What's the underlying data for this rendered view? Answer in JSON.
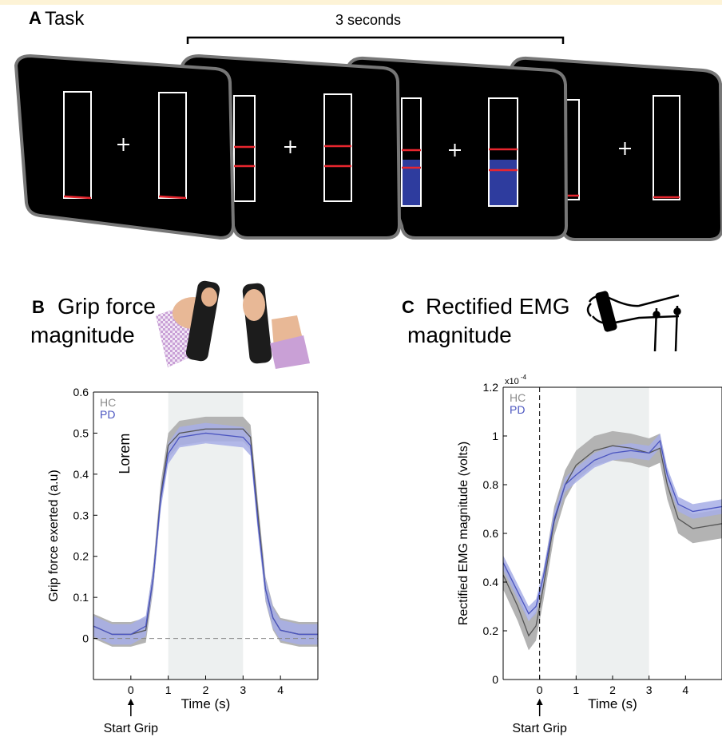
{
  "panel_a": {
    "letter": "A",
    "title": "Task",
    "duration_label": "3 seconds"
  },
  "panel_b": {
    "letter": "B",
    "title_line1": "Grip force",
    "title_line2": "magnitude"
  },
  "panel_c": {
    "letter": "C",
    "title_line1": "Rectified EMG",
    "title_line2": "magnitude"
  },
  "colors": {
    "hc": "#8c8c8c",
    "pd": "#4b55c0",
    "pd_band": "#a7aee6",
    "hc_band": "#b3b3b3",
    "shade": "#edf0f0",
    "screen_fill": "#000000",
    "blue_fill": "#2e3c9e",
    "red_line": "#e8262e"
  },
  "chart_data": [
    {
      "type": "line",
      "ylabel": "Grip force exerted (a.u)",
      "xlabel": "Time (s)",
      "xlim": [
        -1,
        5
      ],
      "ylim": [
        -0.1,
        0.6
      ],
      "x_ticks": [
        "0",
        "1",
        "2",
        "3",
        "4"
      ],
      "y_ticks": [
        "0",
        "0.1",
        "0.2",
        "0.3",
        "0.4",
        "0.5",
        "0.6"
      ],
      "shaded_interval": [
        1,
        3
      ],
      "legend": [
        "HC",
        "PD"
      ],
      "legend_position": "top-left",
      "annotation": "Lorem",
      "arrow_label": "Start Grip",
      "series": [
        {
          "name": "HC",
          "x": [
            -1,
            -0.5,
            0,
            0.4,
            0.6,
            0.8,
            1,
            1.3,
            2,
            3,
            3.2,
            3.4,
            3.6,
            3.8,
            4,
            4.5,
            5
          ],
          "y": [
            0.03,
            0.01,
            0.01,
            0.02,
            0.15,
            0.35,
            0.47,
            0.5,
            0.51,
            0.51,
            0.49,
            0.3,
            0.12,
            0.05,
            0.02,
            0.01,
            0.01
          ],
          "band": 0.03
        },
        {
          "name": "PD",
          "x": [
            -1,
            -0.5,
            0,
            0.4,
            0.6,
            0.8,
            1,
            1.3,
            2,
            3,
            3.2,
            3.4,
            3.6,
            3.8,
            4,
            4.5,
            5
          ],
          "y": [
            0.03,
            0.01,
            0.01,
            0.03,
            0.15,
            0.34,
            0.45,
            0.49,
            0.5,
            0.49,
            0.47,
            0.28,
            0.12,
            0.05,
            0.02,
            0.01,
            0.01
          ],
          "band": 0.025
        }
      ]
    },
    {
      "type": "line",
      "ylabel": "Rectified EMG magnitude (volts)",
      "xlabel": "Time (s)",
      "xlim": [
        -1,
        5
      ],
      "ylim": [
        0,
        1.2
      ],
      "y_scale_label": "x10",
      "y_scale_exp": "-4",
      "x_ticks": [
        "0",
        "1",
        "2",
        "3",
        "4"
      ],
      "y_ticks": [
        "0",
        "0.2",
        "0.4",
        "0.6",
        "0.8",
        "1",
        "1.2"
      ],
      "shaded_interval": [
        1,
        3
      ],
      "legend": [
        "HC",
        "PD"
      ],
      "legend_position": "top-left",
      "arrow_label": "Start Grip",
      "series": [
        {
          "name": "HC",
          "x": [
            -1,
            -0.6,
            -0.3,
            -0.1,
            0.1,
            0.4,
            0.7,
            1,
            1.5,
            2,
            2.5,
            3,
            3.3,
            3.5,
            3.8,
            4.2,
            5
          ],
          "y": [
            0.43,
            0.3,
            0.18,
            0.22,
            0.38,
            0.65,
            0.8,
            0.88,
            0.94,
            0.96,
            0.95,
            0.93,
            0.95,
            0.8,
            0.66,
            0.62,
            0.64
          ],
          "band": 0.06
        },
        {
          "name": "PD",
          "x": [
            -1,
            -0.6,
            -0.3,
            -0.1,
            0.1,
            0.4,
            0.7,
            1,
            1.5,
            2,
            2.5,
            3,
            3.3,
            3.5,
            3.8,
            4.2,
            5
          ],
          "y": [
            0.48,
            0.36,
            0.27,
            0.3,
            0.42,
            0.66,
            0.8,
            0.84,
            0.9,
            0.93,
            0.94,
            0.93,
            0.98,
            0.84,
            0.72,
            0.69,
            0.71
          ],
          "band": 0.03
        }
      ]
    }
  ]
}
